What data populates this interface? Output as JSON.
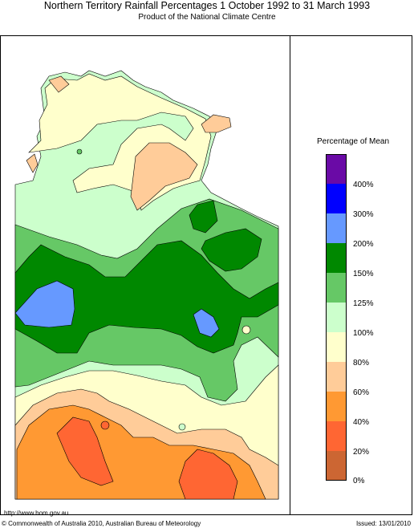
{
  "header": {
    "title": "Northern Territory Rainfall Percentages 1 October 1992 to 31 March 1993",
    "subtitle": "Product of the National Climate Centre"
  },
  "legend": {
    "title": "Percentage of Mean",
    "bins": [
      {
        "label": "400%",
        "color": "#6a0aa6"
      },
      {
        "label": "300%",
        "color": "#0000ff"
      },
      {
        "label": "200%",
        "color": "#6699ff"
      },
      {
        "label": "150%",
        "color": "#008800"
      },
      {
        "label": "125%",
        "color": "#66c866"
      },
      {
        "label": "100%",
        "color": "#ccffcc"
      },
      {
        "label": "80%",
        "color": "#ffffcc"
      },
      {
        "label": "60%",
        "color": "#ffcc99"
      },
      {
        "label": "40%",
        "color": "#ff9933"
      },
      {
        "label": "20%",
        "color": "#ff6633"
      },
      {
        "label": "0%",
        "color": "#cc6633"
      }
    ]
  },
  "footer": {
    "url": "http://www.bom.gov.au",
    "copyright": "© Commonwealth of Australia 2010, Australian Bureau of Meteorology",
    "issued": "Issued: 13/01/2010"
  }
}
